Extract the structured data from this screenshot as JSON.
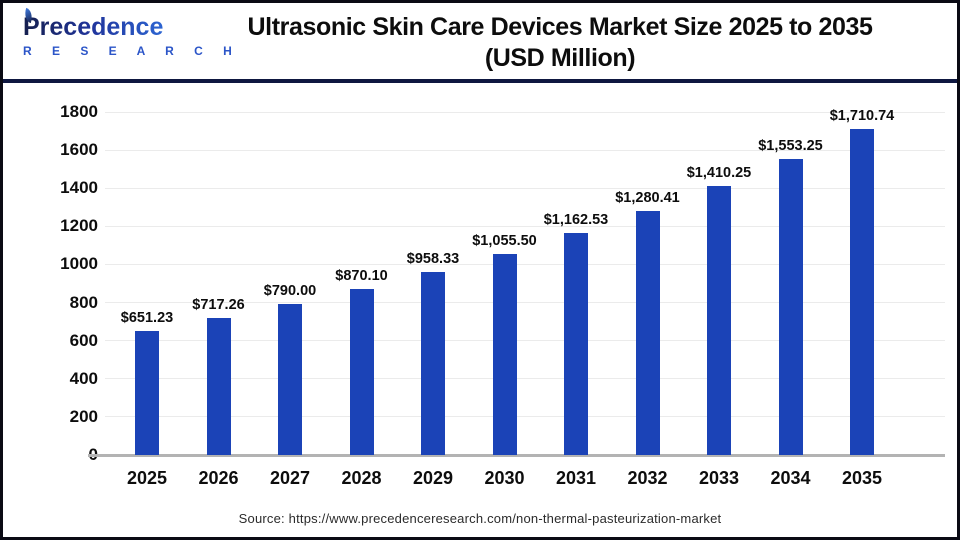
{
  "brand": {
    "name": "Precedence",
    "sub": "R E S E A R C H"
  },
  "header": {
    "title_line1": "Ultrasonic Skin Care Devices Market Size 2025 to 2035",
    "title_line2": "(USD Million)"
  },
  "source": {
    "label": "Source: https://www.precedenceresearch.com/non-thermal-pasteurization-market"
  },
  "colors": {
    "bar": "#1b43b7",
    "frame_border": "#0a0a14",
    "header_separator": "#0e1740",
    "gridline": "#ebebeb",
    "baseline": "#b3b3b3",
    "brand_dark": "#151f4e",
    "brand_blue": "#2e6bd9"
  },
  "chart_data": {
    "type": "bar",
    "title": "Ultrasonic Skin Care Devices Market Size 2025 to 2035 (USD Million)",
    "xlabel": "",
    "ylabel": "",
    "categories": [
      "2025",
      "2026",
      "2027",
      "2028",
      "2029",
      "2030",
      "2031",
      "2032",
      "2033",
      "2034",
      "2035"
    ],
    "values": [
      651.23,
      717.26,
      790.0,
      870.1,
      958.33,
      1055.5,
      1162.53,
      1280.41,
      1410.25,
      1553.25,
      1710.74
    ],
    "value_labels": [
      "$651.23",
      "$717.26",
      "$790.00",
      "$870.10",
      "$958.33",
      "$1,055.50",
      "$1,162.53",
      "$1,280.41",
      "$1,410.25",
      "$1,553.25",
      "$1,710.74"
    ],
    "ylim": [
      0,
      1800
    ],
    "ytick_step": 200,
    "ytick_labels": [
      "0",
      "200",
      "400",
      "600",
      "800",
      "1000",
      "1200",
      "1400",
      "1600",
      "1800"
    ],
    "grid": true,
    "legend": false
  }
}
